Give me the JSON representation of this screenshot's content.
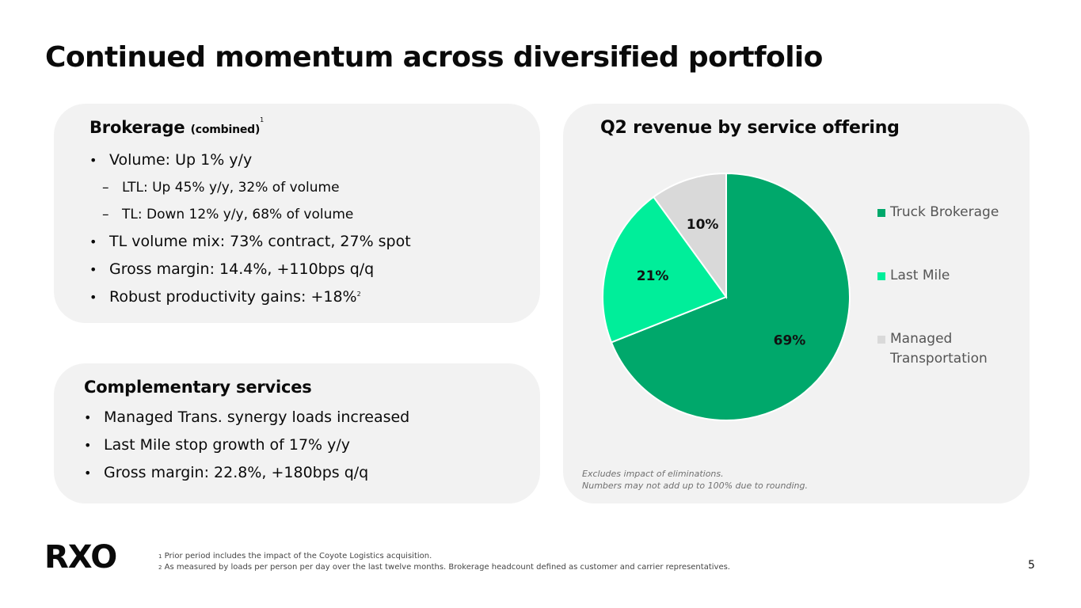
{
  "title": "Continued momentum across diversified portfolio",
  "brokerage": {
    "heading": "Brokerage",
    "heading_sub": "(combined)",
    "heading_sup": "1",
    "bullets": [
      {
        "text": "Volume: Up 1% y/y"
      },
      {
        "text": "LTL: Up 45% y/y, 32% of volume"
      },
      {
        "text": "TL: Down 12% y/y, 68% of volume"
      },
      {
        "text": "TL volume mix: 73% contract, 27% spot"
      },
      {
        "text": "Gross margin: 14.4%, +110bps q/q"
      },
      {
        "text": "Robust productivity gains: +18%",
        "sup": "2"
      }
    ]
  },
  "services": {
    "heading": "Complementary services",
    "bullets": [
      "Managed Trans. synergy loads increased",
      "Last Mile stop growth of 17% y/y",
      "Gross margin: 22.8%, +180bps q/q"
    ]
  },
  "chart_data": {
    "type": "pie",
    "title": "Q2 revenue by service offering",
    "categories": [
      "Truck Brokerage",
      "Last Mile",
      "Managed Transportation"
    ],
    "values": [
      69,
      21,
      10
    ],
    "labels": [
      "69%",
      "21%",
      "10%"
    ],
    "colors": [
      "#00a86b",
      "#00ee9a",
      "#d9d9d9"
    ],
    "legend_position": "right",
    "notes": [
      "Excludes impact of eliminations.",
      "Numbers may not add up to 100% due to rounding."
    ]
  },
  "footer": {
    "logo": "RXO",
    "footnotes": [
      {
        "mark": "1",
        "text": " Prior period includes the impact of the Coyote Logistics acquisition."
      },
      {
        "mark": "2",
        "text": " As measured by loads per person per day over the last twelve months. Brokerage headcount defined as customer and carrier representatives."
      }
    ],
    "page_number": "5"
  }
}
